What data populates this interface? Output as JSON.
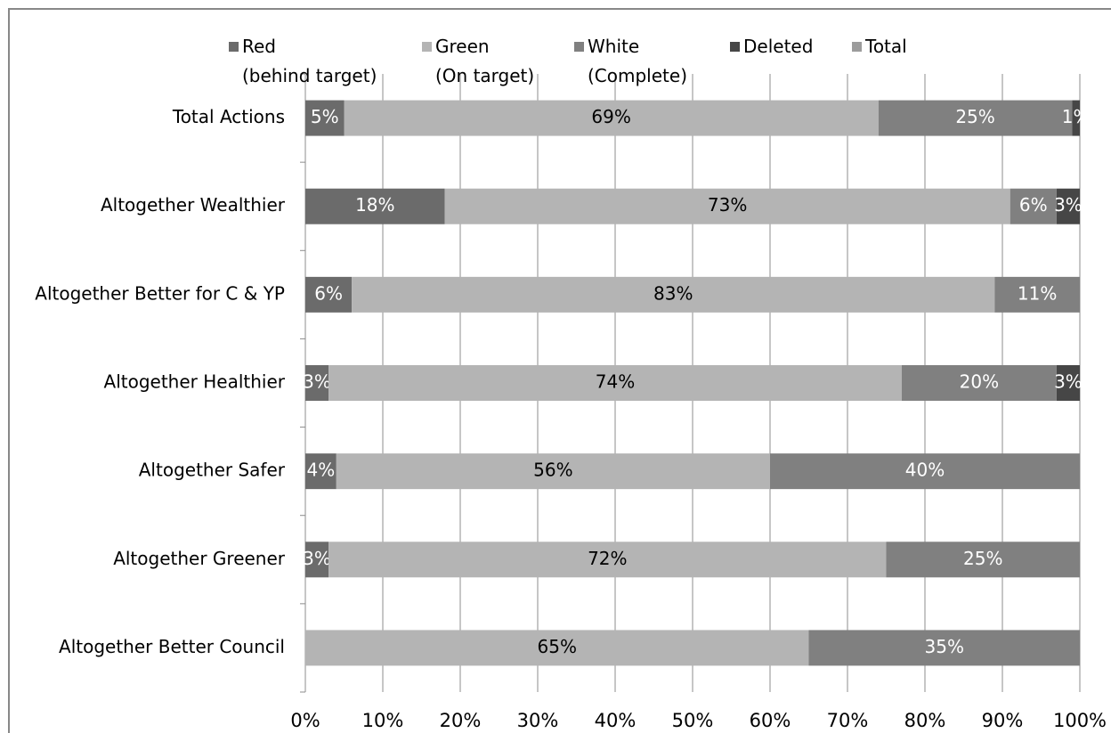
{
  "chart_data": {
    "type": "stacked-bar-horizontal",
    "categories": [
      "Total Actions",
      "Altogether Wealthier",
      "Altogether Better for C & YP",
      "Altogether Healthier",
      "Altogether Safer",
      "Altogether Greener",
      "Altogether Better Council"
    ],
    "series": [
      {
        "name": "Red\n(behind target)",
        "color": "#6b6b6b",
        "label_color": "#ffffff",
        "values": [
          5,
          18,
          6,
          3,
          4,
          3,
          null
        ],
        "value_labels": [
          "5%",
          "18%",
          "6%",
          "3%",
          "4%",
          "3%",
          null
        ]
      },
      {
        "name": "Green\n(On target)",
        "color": "#b4b4b4",
        "label_color": "#000000",
        "values": [
          69,
          73,
          83,
          74,
          56,
          72,
          65
        ],
        "value_labels": [
          "69%",
          "73%",
          "83%",
          "74%",
          "56%",
          "72%",
          "65%"
        ]
      },
      {
        "name": "White\n(Complete)",
        "color": "#808080",
        "label_color": "#ffffff",
        "values": [
          25,
          6,
          11,
          20,
          40,
          25,
          35
        ],
        "value_labels": [
          "25%",
          "6%",
          "11%",
          "20%",
          "40%",
          "25%",
          "35%"
        ]
      },
      {
        "name": "Deleted",
        "color": "#464646",
        "label_color": "#ffffff",
        "values": [
          1,
          3,
          null,
          3,
          null,
          null,
          null
        ],
        "value_labels": [
          "1%",
          "3%",
          null,
          "3%",
          null,
          null,
          null
        ]
      },
      {
        "name": "Total",
        "color": "#9c9c9c",
        "label_color": "#000000",
        "values": [
          null,
          null,
          null,
          null,
          null,
          null,
          null
        ],
        "value_labels": [
          null,
          null,
          null,
          null,
          null,
          null,
          null
        ]
      }
    ],
    "xlim": [
      0,
      100
    ],
    "xticks": [
      {
        "value": 0,
        "label": "0%"
      },
      {
        "value": 10,
        "label": "10%"
      },
      {
        "value": 20,
        "label": "20%"
      },
      {
        "value": 30,
        "label": "30%"
      },
      {
        "value": 40,
        "label": "40%"
      },
      {
        "value": 50,
        "label": "50%"
      },
      {
        "value": 60,
        "label": "60%"
      },
      {
        "value": 70,
        "label": "70%"
      },
      {
        "value": 80,
        "label": "80%"
      },
      {
        "value": 90,
        "label": "90%"
      },
      {
        "value": 100,
        "label": "100%"
      }
    ],
    "grid": true,
    "legend": "top"
  }
}
